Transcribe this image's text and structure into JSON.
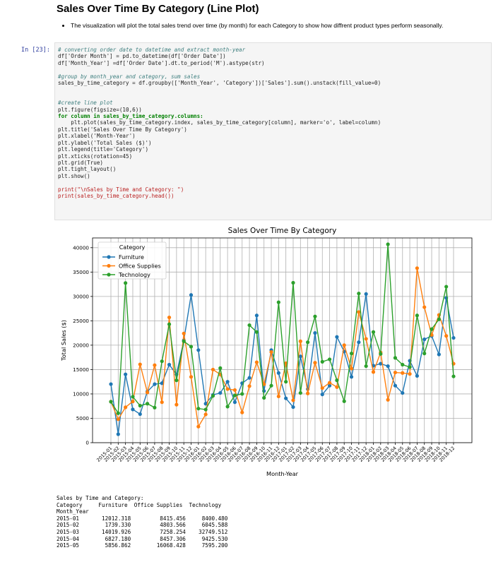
{
  "heading": "Sales Over Time By Category (Line Plot)",
  "bullet": "The visualization will plot the total sales trend over time (by month) for each Category to show how diffrent product types perform seasonally.",
  "cell_prompt": "In [23]:",
  "code": {
    "l1": "# converting order date to datetime and extract month-year",
    "l2": "df['Order Month'] = pd.to_datetime(df['Order Date'])",
    "l3": "df['Month_Year'] =df['Order Date'].dt.to_period('M').astype(str)",
    "l5": "#group by month_year and category, sum sales",
    "l6": "sales_by_time_category = df.groupby(['Month_Year', 'Category'])['Sales'].sum().unstack(fill_value=0)",
    "l9": "#create line plot",
    "l10": "plt.figure(figsize=(10,6))",
    "l11": "for column in sales_by_time_category.columns:",
    "l12": "    plt.plot(sales_by_time_category.index, sales_by_time_category[column], marker='o', label=column)",
    "l13": "plt.title('Sales Over Time By Category')",
    "l14": "plt.xlabel('Month-Year')",
    "l15": "plt.ylabel('Total Sales ($)')",
    "l16": "plt.legend(title='Category')",
    "l17": "plt.xticks(rotation=45)",
    "l18": "plt.grid(True)",
    "l19": "plt.tight_layout()",
    "l20": "plt.show()",
    "l22": "print(\"\\nSales by Time and Category: \")",
    "l23": "print(sales_by_time_category.head())"
  },
  "chart_data": {
    "type": "line",
    "title": "Sales Over Time By Category",
    "xlabel": "Month-Year",
    "ylabel": "Total Sales ($)",
    "legend_title": "Category",
    "legend_position": "top-left",
    "grid": true,
    "ylim": [
      0,
      42000
    ],
    "yticks": [
      0,
      5000,
      10000,
      15000,
      20000,
      25000,
      30000,
      35000,
      40000
    ],
    "x": [
      "2015-01",
      "2015-02",
      "2015-03",
      "2015-04",
      "2015-05",
      "2015-06",
      "2015-07",
      "2015-08",
      "2015-09",
      "2015-10",
      "2015-11",
      "2015-12",
      "2016-01",
      "2016-02",
      "2016-03",
      "2016-04",
      "2016-05",
      "2016-06",
      "2016-07",
      "2016-08",
      "2016-09",
      "2016-10",
      "2016-11",
      "2016-12",
      "2017-01",
      "2017-02",
      "2017-03",
      "2017-04",
      "2017-05",
      "2017-06",
      "2017-07",
      "2017-08",
      "2017-09",
      "2017-10",
      "2017-11",
      "2017-12",
      "2018-01",
      "2018-02",
      "2018-03",
      "2018-04",
      "2018-05",
      "2018-06",
      "2018-07",
      "2018-08",
      "2018-09",
      "2018-10",
      "2018-11",
      "2018-12"
    ],
    "series": [
      {
        "name": "Furniture",
        "color": "#1f77b4",
        "values": [
          12012,
          1739,
          14020,
          6827,
          5857,
          10500,
          12000,
          12200,
          16000,
          14000,
          21000,
          30300,
          19000,
          8000,
          9800,
          10200,
          12500,
          8300,
          12200,
          13300,
          26100,
          10600,
          19000,
          14300,
          9100,
          7300,
          17700,
          11000,
          22500,
          9900,
          11700,
          21700,
          18700,
          13500,
          20600,
          30500,
          15800,
          16200,
          15700,
          11700,
          10200,
          16800,
          13700,
          21200,
          21900,
          18100,
          29700,
          21500
        ]
      },
      {
        "name": "Office Supplies",
        "color": "#ff7f0e",
        "values": [
          8415,
          4804,
          7258,
          8457,
          16068,
          10300,
          15900,
          8300,
          25700,
          7800,
          22400,
          13500,
          3300,
          5800,
          15000,
          14000,
          11000,
          10800,
          6200,
          11600,
          16500,
          12000,
          18600,
          9500,
          16300,
          8700,
          20800,
          10100,
          16400,
          11200,
          12300,
          11400,
          20000,
          15200,
          26800,
          21300,
          14500,
          18500,
          8800,
          14400,
          14300,
          14100,
          35800,
          27800,
          22100,
          26200,
          21900,
          16200
        ]
      },
      {
        "name": "Technology",
        "color": "#2ca02c",
        "values": [
          8400,
          6046,
          32750,
          9426,
          7595,
          8000,
          7200,
          16700,
          24300,
          12800,
          20800,
          19700,
          7000,
          6800,
          9600,
          15300,
          7400,
          9700,
          10000,
          24100,
          22700,
          9200,
          11700,
          28800,
          12500,
          32800,
          10200,
          20600,
          25900,
          16600,
          17100,
          12800,
          8500,
          18300,
          30600,
          15700,
          22700,
          18200,
          40700,
          17400,
          16000,
          15500,
          26100,
          18300,
          23300,
          25300,
          32000,
          13600
        ]
      }
    ]
  },
  "output": {
    "l1": "Sales by Time and Category:",
    "l2": "Category     Furniture  Office Supplies  Technology",
    "l3": "Month_Year",
    "l4": "2015-01       12012.318         8415.456     8400.480",
    "l5": "2015-02        1739.330         4803.566     6045.588",
    "l6": "2015-03       14019.926         7258.254    32749.512",
    "l7": "2015-04        6827.180         8457.306     9425.530",
    "l8": "2015-05        5856.862        16068.428     7595.200"
  }
}
